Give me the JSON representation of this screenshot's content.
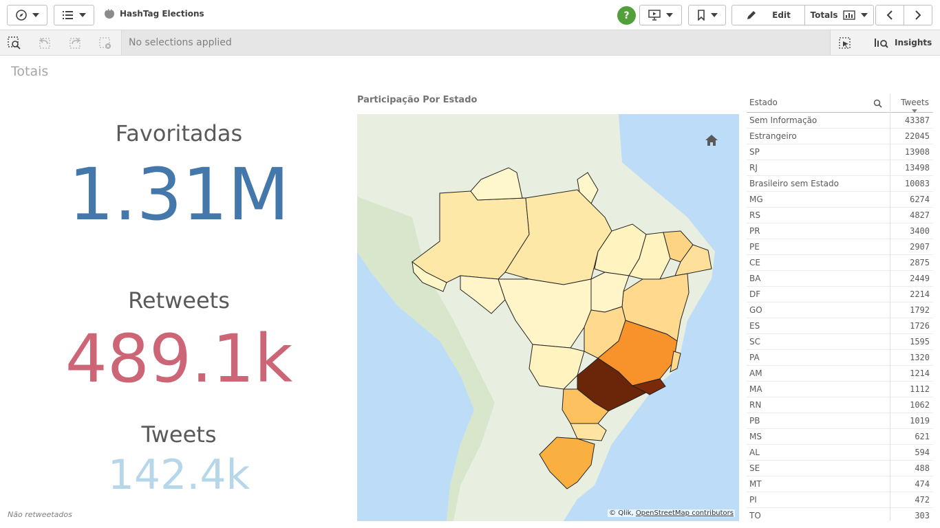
{
  "toolbar": {
    "app_title": "HashTag Elections",
    "help_label": "?",
    "edit_label": "Edit",
    "sheet_label": "Totals"
  },
  "selection_bar": {
    "status_text": "No selections applied",
    "insights_label": "Insights"
  },
  "sheet": {
    "title": "Totais",
    "footnote": "Não retweetados"
  },
  "kpis": {
    "favoritadas": {
      "label": "Favoritadas",
      "value": "1.31M",
      "color": "#4477aa"
    },
    "retweets": {
      "label": "Retweets",
      "value": "489.1k",
      "color": "#cc6677"
    },
    "tweets": {
      "label": "Tweets",
      "value": "142.4k",
      "color": "#b6d7ea"
    }
  },
  "map": {
    "title": "Participação Por Estado",
    "attribution_prefix": "© Qlik,",
    "attribution_link": "OpenStreetMap contributors",
    "home_icon": "home-icon"
  },
  "table": {
    "col_estado": "Estado",
    "col_tweets": "Tweets",
    "rows": [
      {
        "estado": "Sem Informação",
        "tweets": "43387"
      },
      {
        "estado": "Estrangeiro",
        "tweets": "22045"
      },
      {
        "estado": "SP",
        "tweets": "13908"
      },
      {
        "estado": "RJ",
        "tweets": "13498"
      },
      {
        "estado": "Brasileiro sem Estado",
        "tweets": "10083"
      },
      {
        "estado": "MG",
        "tweets": "6274"
      },
      {
        "estado": "RS",
        "tweets": "4827"
      },
      {
        "estado": "PR",
        "tweets": "3400"
      },
      {
        "estado": "PE",
        "tweets": "2907"
      },
      {
        "estado": "CE",
        "tweets": "2875"
      },
      {
        "estado": "BA",
        "tweets": "2449"
      },
      {
        "estado": "DF",
        "tweets": "2214"
      },
      {
        "estado": "GO",
        "tweets": "1792"
      },
      {
        "estado": "ES",
        "tweets": "1726"
      },
      {
        "estado": "SC",
        "tweets": "1595"
      },
      {
        "estado": "PA",
        "tweets": "1320"
      },
      {
        "estado": "AM",
        "tweets": "1214"
      },
      {
        "estado": "MA",
        "tweets": "1112"
      },
      {
        "estado": "RN",
        "tweets": "1062"
      },
      {
        "estado": "PB",
        "tweets": "1019"
      },
      {
        "estado": "MS",
        "tweets": "621"
      },
      {
        "estado": "AL",
        "tweets": "594"
      },
      {
        "estado": "SE",
        "tweets": "488"
      },
      {
        "estado": "MT",
        "tweets": "474"
      },
      {
        "estado": "PI",
        "tweets": "472"
      },
      {
        "estado": "TO",
        "tweets": "303"
      }
    ]
  }
}
